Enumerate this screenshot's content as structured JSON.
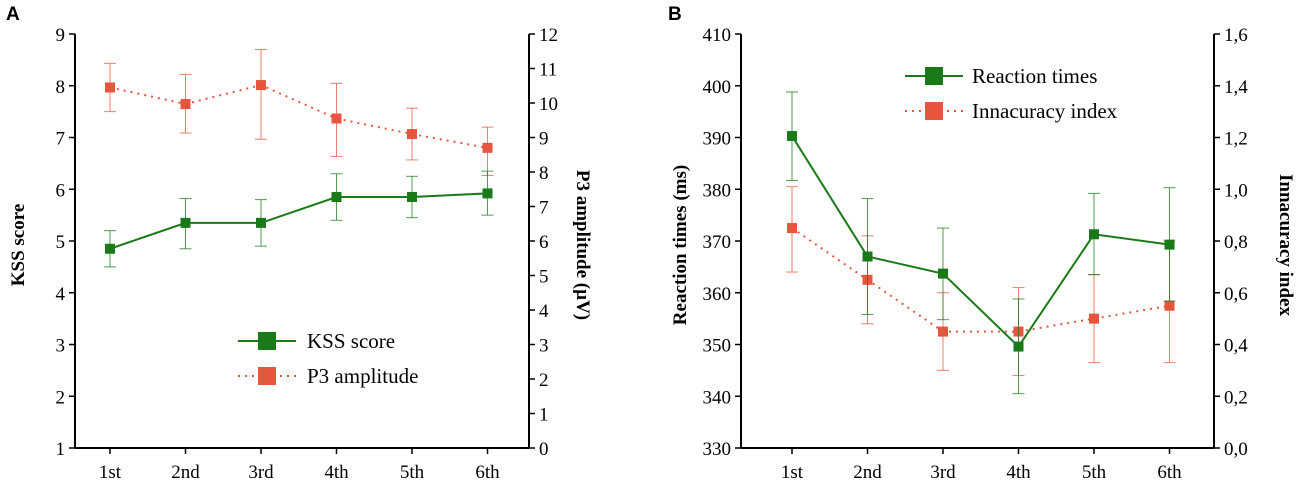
{
  "colors": {
    "green": "#1a7a1a",
    "red": "#e8553e",
    "axis": "#000000"
  },
  "chart_data": [
    {
      "panel": "A",
      "type": "line",
      "categories": [
        "1st",
        "2nd",
        "3rd",
        "4th",
        "5th",
        "6th"
      ],
      "left_axis": {
        "label": "KSS score",
        "range": [
          1,
          9
        ],
        "ticks": [
          "1",
          "2",
          "3",
          "4",
          "5",
          "6",
          "7",
          "8",
          "9"
        ]
      },
      "right_axis": {
        "label": "P3 amplitude (µV)",
        "range": [
          0,
          12
        ],
        "ticks": [
          "0",
          "1",
          "2",
          "3",
          "4",
          "5",
          "6",
          "7",
          "8",
          "9",
          "10",
          "11",
          "12"
        ]
      },
      "legend": {
        "placement": "bottom-right"
      },
      "series": [
        {
          "name": "KSS score",
          "axis": "left",
          "style": "solid",
          "color": "#1a7a1a",
          "values": [
            4.85,
            5.35,
            5.35,
            5.85,
            5.85,
            5.92
          ],
          "err_low": [
            4.5,
            4.85,
            4.9,
            5.4,
            5.45,
            5.5
          ],
          "err_high": [
            5.2,
            5.82,
            5.8,
            6.3,
            6.25,
            6.35
          ]
        },
        {
          "name": "P3 amplitude",
          "axis": "right",
          "style": "dotted",
          "color": "#e8553e",
          "values": [
            10.45,
            9.97,
            10.52,
            9.55,
            9.1,
            8.7
          ],
          "err_low": [
            9.75,
            9.13,
            8.95,
            8.45,
            8.35,
            7.9
          ],
          "err_high": [
            11.15,
            10.83,
            11.55,
            10.57,
            9.85,
            9.3
          ]
        }
      ]
    },
    {
      "panel": "B",
      "type": "line",
      "categories": [
        "1st",
        "2nd",
        "3rd",
        "4th",
        "5th",
        "6th"
      ],
      "left_axis": {
        "label": "Reaction times (ms)",
        "range": [
          330,
          410
        ],
        "ticks": [
          "330",
          "340",
          "350",
          "360",
          "370",
          "380",
          "390",
          "400",
          "410"
        ]
      },
      "right_axis": {
        "label": "Innacuracy index",
        "range": [
          0,
          1.6
        ],
        "ticks": [
          "0,0",
          "0,2",
          "0,4",
          "0,6",
          "0,8",
          "1,0",
          "1,2",
          "1,4",
          "1,6"
        ]
      },
      "legend": {
        "placement": "top-right"
      },
      "series": [
        {
          "name": "Reaction times",
          "axis": "left",
          "style": "solid",
          "color": "#1a7a1a",
          "values": [
            390.3,
            367.0,
            363.7,
            349.6,
            371.3,
            369.3
          ],
          "err_low": [
            381.7,
            355.8,
            354.8,
            340.5,
            363.5,
            358.4
          ],
          "err_high": [
            398.8,
            378.2,
            372.5,
            358.8,
            379.2,
            380.3
          ]
        },
        {
          "name": "Innacuracy index",
          "axis": "right",
          "style": "dotted",
          "color": "#e8553e",
          "values": [
            0.85,
            0.65,
            0.45,
            0.45,
            0.5,
            0.55
          ],
          "err_low": [
            0.68,
            0.48,
            0.3,
            0.28,
            0.33,
            0.33
          ],
          "err_high": [
            1.01,
            0.82,
            0.6,
            0.62,
            0.67,
            0.8
          ]
        }
      ]
    }
  ]
}
